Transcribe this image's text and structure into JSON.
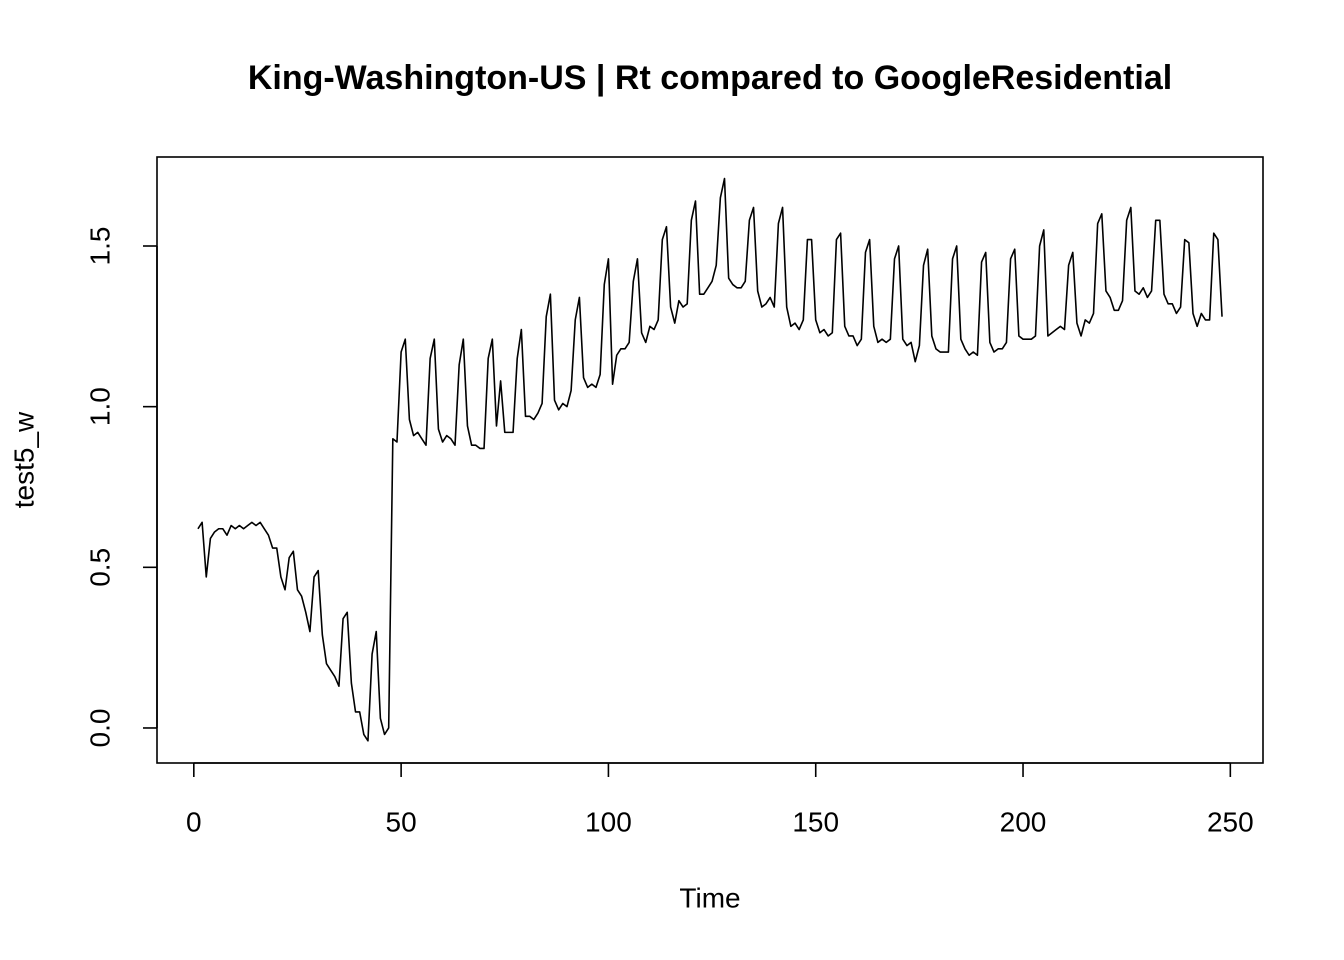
{
  "chart_data": {
    "type": "line",
    "title": "King-Washington-US | Rt compared to GoogleResidential",
    "xlabel": "Time",
    "ylabel": "test5_w",
    "color": "#000000",
    "x": [
      1,
      2,
      3,
      4,
      5,
      6,
      7,
      8,
      9,
      10,
      11,
      12,
      13,
      14,
      15,
      16,
      17,
      18,
      19,
      20,
      21,
      22,
      23,
      24,
      25,
      26,
      27,
      28,
      29,
      30,
      31,
      32,
      33,
      34,
      35,
      36,
      37,
      38,
      39,
      40,
      41,
      42,
      43,
      44,
      45,
      46,
      47,
      48,
      49,
      50,
      51,
      52,
      53,
      54,
      55,
      56,
      57,
      58,
      59,
      60,
      61,
      62,
      63,
      64,
      65,
      66,
      67,
      68,
      69,
      70,
      71,
      72,
      73,
      74,
      75,
      76,
      77,
      78,
      79,
      80,
      81,
      82,
      83,
      84,
      85,
      86,
      87,
      88,
      89,
      90,
      91,
      92,
      93,
      94,
      95,
      96,
      97,
      98,
      99,
      100,
      101,
      102,
      103,
      104,
      105,
      106,
      107,
      108,
      109,
      110,
      111,
      112,
      113,
      114,
      115,
      116,
      117,
      118,
      119,
      120,
      121,
      122,
      123,
      124,
      125,
      126,
      127,
      128,
      129,
      130,
      131,
      132,
      133,
      134,
      135,
      136,
      137,
      138,
      139,
      140,
      141,
      142,
      143,
      144,
      145,
      146,
      147,
      148,
      149,
      150,
      151,
      152,
      153,
      154,
      155,
      156,
      157,
      158,
      159,
      160,
      161,
      162,
      163,
      164,
      165,
      166,
      167,
      168,
      169,
      170,
      171,
      172,
      173,
      174,
      175,
      176,
      177,
      178,
      179,
      180,
      181,
      182,
      183,
      184,
      185,
      186,
      187,
      188,
      189,
      190,
      191,
      192,
      193,
      194,
      195,
      196,
      197,
      198,
      199,
      200,
      201,
      202,
      203,
      204,
      205,
      206,
      207,
      208,
      209,
      210,
      211,
      212,
      213,
      214,
      215,
      216,
      217,
      218,
      219,
      220,
      221,
      222,
      223,
      224,
      225,
      226,
      227,
      228,
      229,
      230,
      231,
      232,
      233,
      234,
      235,
      236,
      237,
      238,
      239,
      240,
      241,
      242,
      243,
      244,
      245,
      246,
      247,
      248
    ],
    "values": [
      0.62,
      0.64,
      0.47,
      0.59,
      0.61,
      0.62,
      0.62,
      0.6,
      0.63,
      0.62,
      0.63,
      0.62,
      0.63,
      0.64,
      0.63,
      0.64,
      0.62,
      0.6,
      0.56,
      0.56,
      0.47,
      0.43,
      0.53,
      0.55,
      0.43,
      0.41,
      0.36,
      0.3,
      0.47,
      0.49,
      0.29,
      0.2,
      0.18,
      0.16,
      0.13,
      0.34,
      0.36,
      0.14,
      0.05,
      0.05,
      -0.02,
      -0.04,
      0.23,
      0.3,
      0.03,
      -0.02,
      0.0,
      0.9,
      0.89,
      1.17,
      1.21,
      0.96,
      0.91,
      0.92,
      0.9,
      0.88,
      1.15,
      1.21,
      0.93,
      0.89,
      0.91,
      0.9,
      0.88,
      1.13,
      1.21,
      0.94,
      0.88,
      0.88,
      0.87,
      0.87,
      1.15,
      1.21,
      0.94,
      1.08,
      0.92,
      0.92,
      0.92,
      1.15,
      1.24,
      0.97,
      0.97,
      0.96,
      0.98,
      1.01,
      1.28,
      1.35,
      1.02,
      0.99,
      1.01,
      1.0,
      1.05,
      1.27,
      1.34,
      1.09,
      1.06,
      1.07,
      1.06,
      1.1,
      1.38,
      1.46,
      1.07,
      1.16,
      1.18,
      1.18,
      1.2,
      1.39,
      1.46,
      1.23,
      1.2,
      1.25,
      1.24,
      1.27,
      1.52,
      1.56,
      1.31,
      1.26,
      1.33,
      1.31,
      1.32,
      1.58,
      1.64,
      1.35,
      1.35,
      1.37,
      1.39,
      1.44,
      1.65,
      1.71,
      1.4,
      1.38,
      1.37,
      1.37,
      1.39,
      1.58,
      1.62,
      1.36,
      1.31,
      1.32,
      1.34,
      1.31,
      1.57,
      1.62,
      1.31,
      1.25,
      1.26,
      1.24,
      1.27,
      1.52,
      1.52,
      1.27,
      1.23,
      1.24,
      1.22,
      1.23,
      1.52,
      1.54,
      1.25,
      1.22,
      1.22,
      1.19,
      1.21,
      1.48,
      1.52,
      1.25,
      1.2,
      1.21,
      1.2,
      1.21,
      1.46,
      1.5,
      1.21,
      1.19,
      1.2,
      1.14,
      1.19,
      1.44,
      1.49,
      1.22,
      1.18,
      1.17,
      1.17,
      1.17,
      1.46,
      1.5,
      1.21,
      1.18,
      1.16,
      1.17,
      1.16,
      1.45,
      1.48,
      1.2,
      1.17,
      1.18,
      1.18,
      1.2,
      1.46,
      1.49,
      1.22,
      1.21,
      1.21,
      1.21,
      1.22,
      1.5,
      1.55,
      1.22,
      1.23,
      1.24,
      1.25,
      1.24,
      1.44,
      1.48,
      1.26,
      1.22,
      1.27,
      1.26,
      1.29,
      1.57,
      1.6,
      1.36,
      1.34,
      1.3,
      1.3,
      1.33,
      1.58,
      1.62,
      1.36,
      1.35,
      1.37,
      1.34,
      1.36,
      1.58,
      1.58,
      1.35,
      1.32,
      1.32,
      1.29,
      1.31,
      1.52,
      1.51,
      1.29,
      1.25,
      1.29,
      1.27,
      1.27,
      1.54,
      1.52,
      1.28
    ],
    "xlim": [
      -8.88,
      257.88
    ],
    "ylim": [
      -0.109,
      1.777
    ],
    "xticks": [
      0,
      50,
      100,
      150,
      200,
      250
    ],
    "yticks": [
      {
        "value": 0,
        "label": "0.0"
      },
      0.5,
      {
        "value": 1,
        "label": "1.0"
      },
      1.5
    ]
  }
}
